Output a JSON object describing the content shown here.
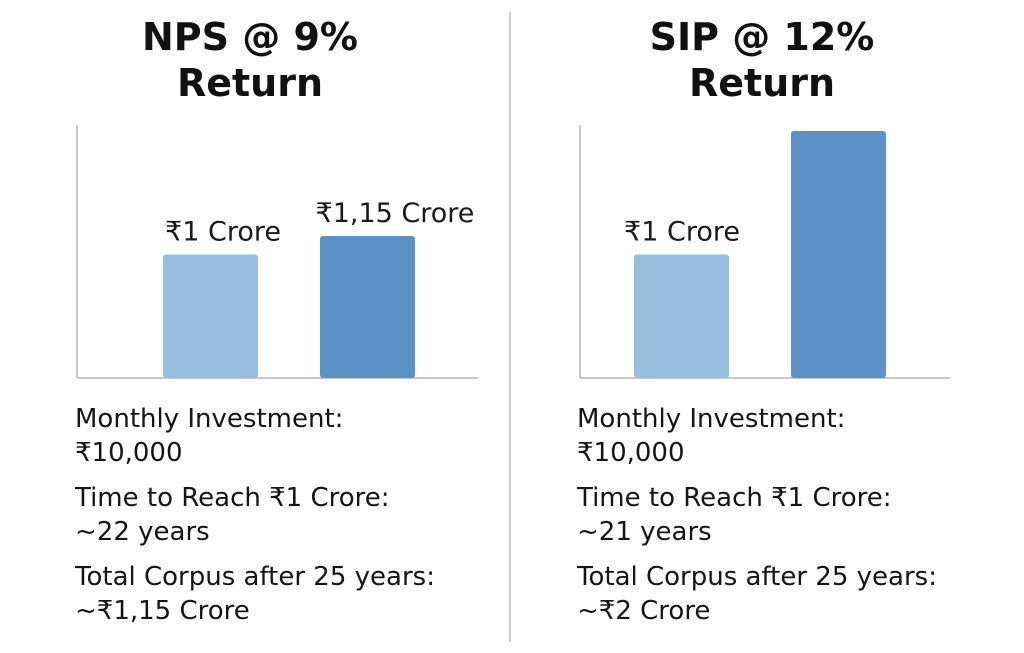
{
  "colors": {
    "bar_light": "#97bedf",
    "bar_dark": "#5b91c4",
    "axis": "#c8c8c8",
    "divider": "#cfcfcf"
  },
  "chart_data": [
    {
      "type": "bar",
      "title": "NPS @ 9% Return",
      "title_lines": [
        "NPS @ 9%",
        "Return"
      ],
      "categories": [
        "",
        ""
      ],
      "values": [
        1,
        1.15
      ],
      "data_labels": [
        "₹1 Crore",
        "₹1,15 Crore"
      ],
      "ylim": [
        0,
        2
      ],
      "ylabel": "",
      "xlabel": "",
      "grid": false
    },
    {
      "type": "bar",
      "title": "SIP @ 12% Return",
      "title_lines": [
        "SIP @ 12%",
        "Return"
      ],
      "categories": [
        "",
        ""
      ],
      "values": [
        1,
        2
      ],
      "data_labels": [
        "₹1 Crore",
        ""
      ],
      "ylim": [
        0,
        2
      ],
      "ylabel": "",
      "xlabel": "",
      "grid": false
    }
  ],
  "panels": [
    {
      "stats": [
        {
          "label": "Monthly Investment:",
          "value": "₹10,000"
        },
        {
          "label": "Time to Reach ₹1 Crore:",
          "value": "~22 years"
        },
        {
          "label": "Total Corpus after 25 years:",
          "value": "~₹1,15 Crore"
        }
      ]
    },
    {
      "stats": [
        {
          "label": "Monthly Investment:",
          "value": "₹10,000"
        },
        {
          "label": "Time to Reach ₹1 Crore:",
          "value": "~21 years"
        },
        {
          "label": "Total Corpus after 25 years:",
          "value": "~₹2 Crore"
        }
      ]
    }
  ]
}
